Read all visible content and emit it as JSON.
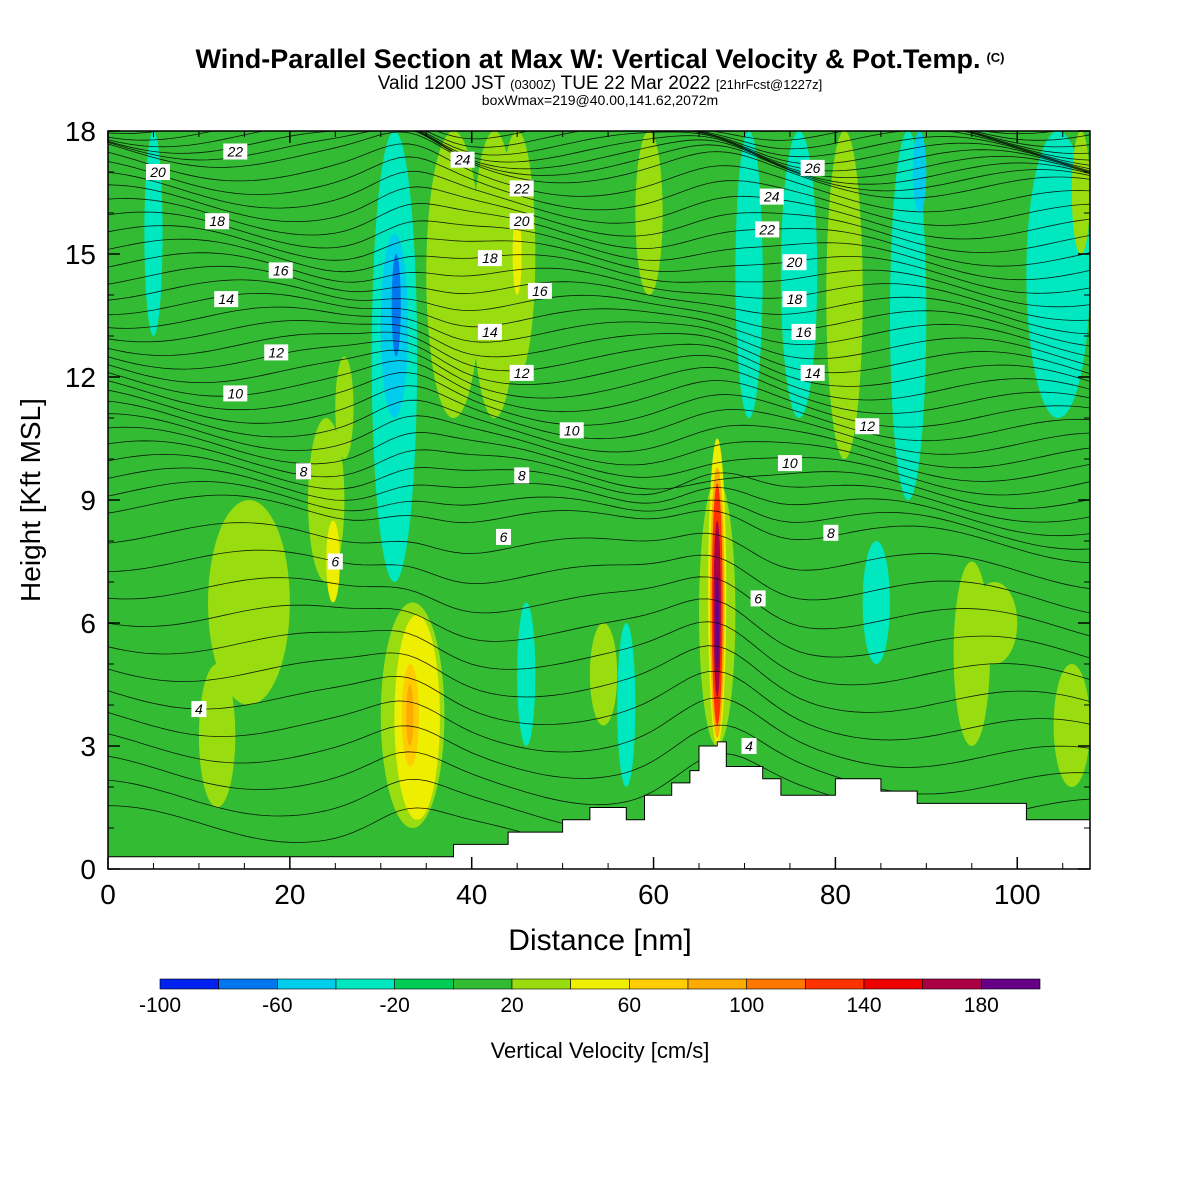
{
  "header": {
    "title": "Wind-Parallel Section at Max W: Vertical Velocity & Pot.Temp.",
    "copyright": "(C)",
    "valid_prefix": "Valid 1200 JST",
    "valid_utc": "(0300Z)",
    "valid_date": "TUE 22 Mar 2022",
    "forecast_tag": "[21hrFcst@1227z]",
    "boxwmax": "boxWmax=219@40.00,141.62,2072m"
  },
  "chart_data": {
    "type": "heatmap",
    "xlabel": "Distance [nm]",
    "ylabel": "Height [Kft MSL]",
    "xlim": [
      0,
      108
    ],
    "ylim": [
      0,
      18
    ],
    "xticks": [
      "0",
      "20",
      "40",
      "60",
      "80",
      "100"
    ],
    "xtick_values": [
      0,
      20,
      40,
      60,
      80,
      100
    ],
    "yticks": [
      "0",
      "3",
      "6",
      "9",
      "12",
      "15",
      "18"
    ],
    "ytick_values": [
      0,
      3,
      6,
      9,
      12,
      15,
      18
    ],
    "colorbar": {
      "label": "Vertical Velocity [cm/s]",
      "bounds": [
        -100,
        -80,
        -60,
        -40,
        -20,
        0,
        20,
        40,
        60,
        80,
        100,
        120,
        140,
        160,
        180,
        200
      ],
      "colors": [
        "#0022ee",
        "#0077ee",
        "#00ccee",
        "#00e8c0",
        "#00cc55",
        "#33bb33",
        "#99dd11",
        "#eeee00",
        "#ffcc00",
        "#ffaa00",
        "#ff7700",
        "#ff3300",
        "#ee0000",
        "#aa0044",
        "#660088"
      ],
      "tick_labels": [
        "-100",
        "-60",
        "-20",
        "20",
        "60",
        "100",
        "140",
        "180"
      ],
      "tick_values": [
        -100,
        -60,
        -20,
        20,
        60,
        100,
        140,
        180
      ]
    },
    "background_value": 5,
    "cells": [
      {
        "x": [
          0,
          4
        ],
        "y": [
          0,
          18
        ],
        "v": 2
      },
      {
        "x": [
          4,
          6
        ],
        "y": [
          13,
          18
        ],
        "v": -25
      },
      {
        "x": [
          10,
          14
        ],
        "y": [
          1.5,
          5
        ],
        "v": 25
      },
      {
        "x": [
          11,
          20
        ],
        "y": [
          4,
          9
        ],
        "v": 28
      },
      {
        "x": [
          20,
          23
        ],
        "y": [
          5,
          10
        ],
        "v": 18
      },
      {
        "x": [
          22,
          26
        ],
        "y": [
          7,
          11
        ],
        "v": 30
      },
      {
        "x": [
          24,
          25.5
        ],
        "y": [
          6.5,
          8.5
        ],
        "v": 45
      },
      {
        "x": [
          25,
          27
        ],
        "y": [
          10,
          12.5
        ],
        "v": 22
      },
      {
        "x": [
          29,
          34
        ],
        "y": [
          7,
          18
        ],
        "v": -35
      },
      {
        "x": [
          30,
          33
        ],
        "y": [
          11,
          15.5
        ],
        "v": -55
      },
      {
        "x": [
          31.2,
          32.2
        ],
        "y": [
          12.5,
          15
        ],
        "v": -80
      },
      {
        "x": [
          35,
          41
        ],
        "y": [
          11,
          18
        ],
        "v": 20
      },
      {
        "x": [
          30,
          37
        ],
        "y": [
          1,
          6.5
        ],
        "v": 35
      },
      {
        "x": [
          31.5,
          36.5
        ],
        "y": [
          1.2,
          6.2
        ],
        "v": 55
      },
      {
        "x": [
          32.3,
          34.2
        ],
        "y": [
          2.5,
          5
        ],
        "v": 75
      },
      {
        "x": [
          32.8,
          33.6
        ],
        "y": [
          3,
          4.5
        ],
        "v": 95
      },
      {
        "x": [
          40,
          45
        ],
        "y": [
          11,
          18
        ],
        "v": 25
      },
      {
        "x": [
          43,
          47
        ],
        "y": [
          12,
          18
        ],
        "v": 35
      },
      {
        "x": [
          44.5,
          45.5
        ],
        "y": [
          14,
          16
        ],
        "v": 50
      },
      {
        "x": [
          45,
          47
        ],
        "y": [
          3,
          6.5
        ],
        "v": -25
      },
      {
        "x": [
          53,
          56
        ],
        "y": [
          3.5,
          6
        ],
        "v": 25
      },
      {
        "x": [
          56,
          58
        ],
        "y": [
          2,
          6
        ],
        "v": -25
      },
      {
        "x": [
          57,
          60
        ],
        "y": [
          5,
          18
        ],
        "v": 12
      },
      {
        "x": [
          58,
          61
        ],
        "y": [
          14,
          18
        ],
        "v": 25
      },
      {
        "x": [
          65,
          69
        ],
        "y": [
          3,
          9.5
        ],
        "v": 28
      },
      {
        "x": [
          66,
          68
        ],
        "y": [
          3,
          10.5
        ],
        "v": 50
      },
      {
        "x": [
          66.2,
          67.8
        ],
        "y": [
          3.2,
          9.8
        ],
        "v": 90
      },
      {
        "x": [
          66.4,
          67.6
        ],
        "y": [
          3.5,
          9.4
        ],
        "v": 130
      },
      {
        "x": [
          66.6,
          67.4
        ],
        "y": [
          4.2,
          8.5
        ],
        "v": 160
      },
      {
        "x": [
          66.8,
          67.2
        ],
        "y": [
          4.8,
          7.2
        ],
        "v": 190
      },
      {
        "x": [
          69,
          72
        ],
        "y": [
          11,
          18
        ],
        "v": -22
      },
      {
        "x": [
          74,
          78
        ],
        "y": [
          11,
          18
        ],
        "v": -22
      },
      {
        "x": [
          79,
          83
        ],
        "y": [
          10,
          18
        ],
        "v": 22
      },
      {
        "x": [
          83,
          86
        ],
        "y": [
          5,
          8
        ],
        "v": -22
      },
      {
        "x": [
          86,
          90
        ],
        "y": [
          9,
          18
        ],
        "v": -30
      },
      {
        "x": [
          88.5,
          90
        ],
        "y": [
          16,
          18
        ],
        "v": -60
      },
      {
        "x": [
          93,
          97
        ],
        "y": [
          3,
          7.5
        ],
        "v": 22
      },
      {
        "x": [
          95,
          100
        ],
        "y": [
          5,
          7
        ],
        "v": 25
      },
      {
        "x": [
          101,
          108
        ],
        "y": [
          11,
          18
        ],
        "v": -25
      },
      {
        "x": [
          104,
          108
        ],
        "y": [
          2,
          5
        ],
        "v": 25
      },
      {
        "x": [
          106,
          108
        ],
        "y": [
          15,
          18
        ],
        "v": 25
      }
    ],
    "terrain_top": [
      {
        "x": [
          0,
          38
        ],
        "y": 0.3
      },
      {
        "x": [
          38,
          44
        ],
        "y": 0.6
      },
      {
        "x": [
          44,
          50
        ],
        "y": 0.9
      },
      {
        "x": [
          50,
          53
        ],
        "y": 1.2
      },
      {
        "x": [
          53,
          57
        ],
        "y": 1.5
      },
      {
        "x": [
          57,
          59
        ],
        "y": 1.2
      },
      {
        "x": [
          59,
          62
        ],
        "y": 1.8
      },
      {
        "x": [
          62,
          64
        ],
        "y": 2.1
      },
      {
        "x": [
          64,
          65
        ],
        "y": 2.4
      },
      {
        "x": [
          65,
          67
        ],
        "y": 3.0
      },
      {
        "x": [
          67,
          68
        ],
        "y": 3.1
      },
      {
        "x": [
          68,
          72
        ],
        "y": 2.5
      },
      {
        "x": [
          72,
          74
        ],
        "y": 2.2
      },
      {
        "x": [
          74,
          80
        ],
        "y": 1.8
      },
      {
        "x": [
          80,
          85
        ],
        "y": 2.2
      },
      {
        "x": [
          85,
          89
        ],
        "y": 1.9
      },
      {
        "x": [
          89,
          101
        ],
        "y": 1.6
      },
      {
        "x": [
          101,
          108
        ],
        "y": 1.2
      }
    ],
    "theta_contours": [
      {
        "level": 4,
        "y0": 3.7,
        "slope": -0.012,
        "label_x": 10,
        "label_y": 3.9
      },
      {
        "level": 6,
        "y0": 6.4,
        "slope": -0.015,
        "label_x": 25,
        "label_y": 7.5
      },
      {
        "level": 8,
        "y0": 8.9,
        "slope": -0.02,
        "label_x": 22,
        "label_y": 9.7
      },
      {
        "level": 10,
        "y0": 11.5,
        "slope": -0.02,
        "label_x": 14,
        "label_y": 11.6
      },
      {
        "level": 12,
        "y0": 12.8,
        "slope": -0.018,
        "label_x": 18.5,
        "label_y": 12.6
      },
      {
        "level": 14,
        "y0": 13.9,
        "slope": -0.015,
        "label_x": 13,
        "label_y": 13.9
      },
      {
        "level": 16,
        "y0": 14.9,
        "slope": -0.015,
        "label_x": 19,
        "label_y": 14.6
      },
      {
        "level": 18,
        "y0": 15.9,
        "slope": -0.015,
        "label_x": 12,
        "label_y": 15.8
      },
      {
        "level": 20,
        "y0": 17.1,
        "slope": -0.015,
        "label_x": 5.5,
        "label_y": 17.0
      },
      {
        "level": 22,
        "y0": 17.6,
        "slope": -0.012,
        "label_x": 14,
        "label_y": 17.5
      }
    ],
    "contour_labels": [
      {
        "text": "4",
        "x": 10,
        "y": 3.9
      },
      {
        "text": "6",
        "x": 25,
        "y": 7.5
      },
      {
        "text": "8",
        "x": 21.5,
        "y": 9.7
      },
      {
        "text": "10",
        "x": 14,
        "y": 11.6
      },
      {
        "text": "12",
        "x": 18.5,
        "y": 12.6
      },
      {
        "text": "14",
        "x": 13,
        "y": 13.9
      },
      {
        "text": "16",
        "x": 19,
        "y": 14.6
      },
      {
        "text": "18",
        "x": 12,
        "y": 15.8
      },
      {
        "text": "20",
        "x": 5.5,
        "y": 17.0
      },
      {
        "text": "22",
        "x": 14,
        "y": 17.5
      },
      {
        "text": "24",
        "x": 39,
        "y": 17.3
      },
      {
        "text": "22",
        "x": 45.5,
        "y": 16.6
      },
      {
        "text": "20",
        "x": 45.5,
        "y": 15.8
      },
      {
        "text": "18",
        "x": 42,
        "y": 14.9
      },
      {
        "text": "16",
        "x": 47.5,
        "y": 14.1
      },
      {
        "text": "14",
        "x": 42,
        "y": 13.1
      },
      {
        "text": "12",
        "x": 45.5,
        "y": 12.1
      },
      {
        "text": "10",
        "x": 51,
        "y": 10.7
      },
      {
        "text": "8",
        "x": 45.5,
        "y": 9.6
      },
      {
        "text": "6",
        "x": 43.5,
        "y": 8.1
      },
      {
        "text": "26",
        "x": 77.5,
        "y": 17.1
      },
      {
        "text": "24",
        "x": 73,
        "y": 16.4
      },
      {
        "text": "22",
        "x": 72.5,
        "y": 15.6
      },
      {
        "text": "20",
        "x": 75.5,
        "y": 14.8
      },
      {
        "text": "18",
        "x": 75.5,
        "y": 13.9
      },
      {
        "text": "16",
        "x": 76.5,
        "y": 13.1
      },
      {
        "text": "14",
        "x": 77.5,
        "y": 12.1
      },
      {
        "text": "12",
        "x": 83.5,
        "y": 10.8
      },
      {
        "text": "10",
        "x": 75,
        "y": 9.9
      },
      {
        "text": "8",
        "x": 79.5,
        "y": 8.2
      },
      {
        "text": "6",
        "x": 71.5,
        "y": 6.6
      },
      {
        "text": "4",
        "x": 70.5,
        "y": 3.0
      }
    ]
  }
}
